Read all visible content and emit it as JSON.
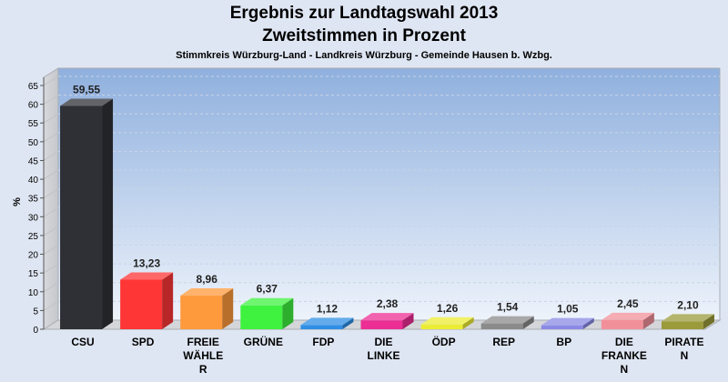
{
  "header": {
    "title": "Ergebnis zur Landtagswahl 2013",
    "subtitle": "Zweitstimmen in Prozent",
    "caption": "Stimmkreis Würzburg-Land - Landkreis Würzburg - Gemeinde Hausen b. Wzbg."
  },
  "chart_data": {
    "type": "bar",
    "ylabel": "%",
    "xlabel": "",
    "ylim": [
      0,
      65
    ],
    "yticks": [
      0,
      5,
      10,
      15,
      20,
      25,
      30,
      35,
      40,
      45,
      50,
      55,
      60,
      65
    ],
    "grid": true,
    "style": "3d",
    "categories": [
      [
        "CSU"
      ],
      [
        "SPD"
      ],
      [
        "FREIE",
        "WÄHLE",
        "R"
      ],
      [
        "GRÜNE"
      ],
      [
        "FDP"
      ],
      [
        "DIE",
        "LINKE"
      ],
      [
        "ÖDP"
      ],
      [
        "REP"
      ],
      [
        "BP"
      ],
      [
        "DIE",
        "FRANKE",
        "N"
      ],
      [
        "PIRATE",
        "N"
      ]
    ],
    "values": [
      59.55,
      13.23,
      8.96,
      6.37,
      1.12,
      2.38,
      1.26,
      1.54,
      1.05,
      2.45,
      2.1
    ],
    "value_labels": [
      "59,55",
      "13,23",
      "8,96",
      "6,37",
      "1,12",
      "2,38",
      "1,26",
      "1,54",
      "1,05",
      "2,45",
      "2,10"
    ],
    "colors": [
      "#2f3036",
      "#ff3636",
      "#ff9a3c",
      "#3ff23f",
      "#2f8fe6",
      "#ec2d94",
      "#ecec34",
      "#8b8b8b",
      "#8a8ae6",
      "#f2909a",
      "#9b9b3c"
    ]
  }
}
